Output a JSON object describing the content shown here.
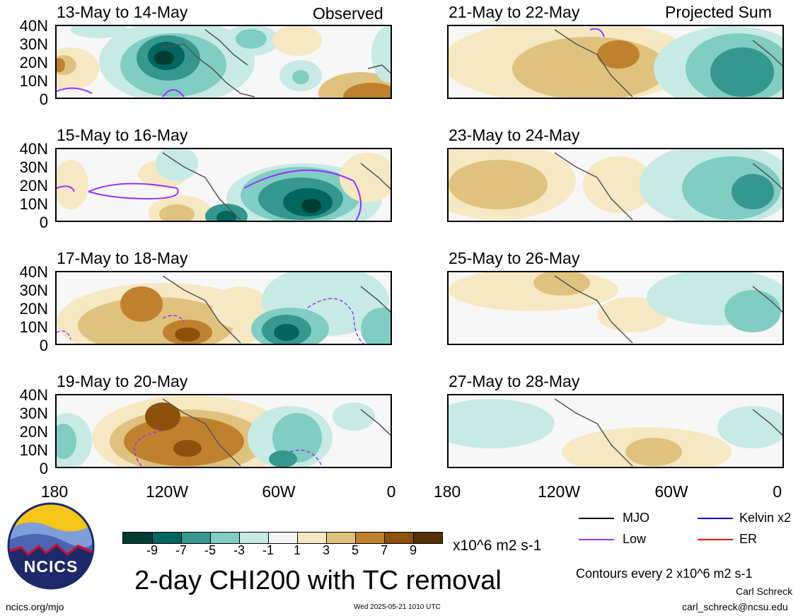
{
  "panels": [
    {
      "title": "13-May to 14-May",
      "corner": "Observed"
    },
    {
      "title": "15-May to 16-May",
      "corner": ""
    },
    {
      "title": "17-May to 18-May",
      "corner": ""
    },
    {
      "title": "19-May to 20-May",
      "corner": ""
    },
    {
      "title": "21-May to 22-May",
      "corner": "Projected Sum"
    },
    {
      "title": "23-May to 24-May",
      "corner": ""
    },
    {
      "title": "25-May to 26-May",
      "corner": ""
    },
    {
      "title": "27-May to 28-May",
      "corner": ""
    }
  ],
  "lat_ticks": [
    "40N",
    "30N",
    "20N",
    "10N",
    "0"
  ],
  "lon_ticks": [
    "180",
    "120W",
    "60W",
    "0"
  ],
  "colorbar": {
    "labels": [
      "-9",
      "-7",
      "-5",
      "-3",
      "-1",
      "1",
      "3",
      "5",
      "7",
      "9"
    ],
    "colors": [
      "#003c30",
      "#01665e",
      "#35978f",
      "#80cdc1",
      "#c7eae5",
      "#f5f5f5",
      "#f6e8c3",
      "#dfc27d",
      "#bf812d",
      "#8c510a",
      "#543005"
    ],
    "units": "x10^6 m2 s-1"
  },
  "legend": {
    "items": [
      {
        "label": "MJO",
        "color": "#000000"
      },
      {
        "label": "Kelvin x2",
        "color": "#0000cc"
      },
      {
        "label": "Low",
        "color": "#9933ff"
      },
      {
        "label": "ER",
        "color": "#ff0000"
      }
    ],
    "contours_note": "Contours every 2 x10^6 m2 s-1"
  },
  "main_title": "2-day CHI200 with TC removal",
  "logo_text": "NCICS",
  "footer": {
    "url": "ncics.org/mjo",
    "timestamp": "Wed 2025-05-21 1010 UTC",
    "author": "Carl Schreck",
    "email": "carl_schreck@ncsu.edu"
  }
}
